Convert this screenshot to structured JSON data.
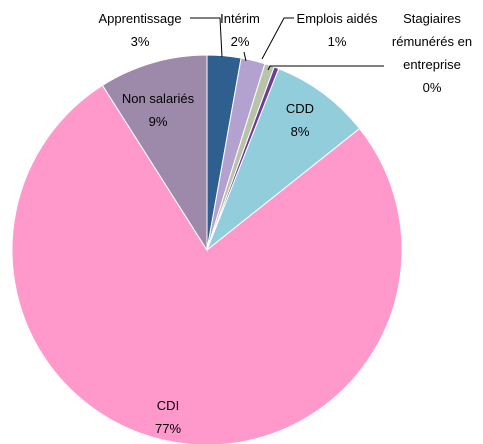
{
  "chart_data": {
    "type": "pie",
    "categories": [
      "Apprentissage",
      "Intérim",
      "Emplois aidés",
      "Stagiaires rémunérés en entreprise",
      "CDD",
      "CDI",
      "Non salariés"
    ],
    "values": [
      2.8,
      2.0,
      0.8,
      0.4,
      8.3,
      76.7,
      9.0
    ],
    "value_labels": [
      "3%",
      "2%",
      "1%",
      "0%",
      "8%",
      "77%",
      "9%"
    ],
    "colors": [
      "#2e5f8e",
      "#b3a2cf",
      "#b9c3aa",
      "#6a3c9c",
      "#92cddc",
      "#ff99cc",
      "#9d8aab"
    ]
  }
}
